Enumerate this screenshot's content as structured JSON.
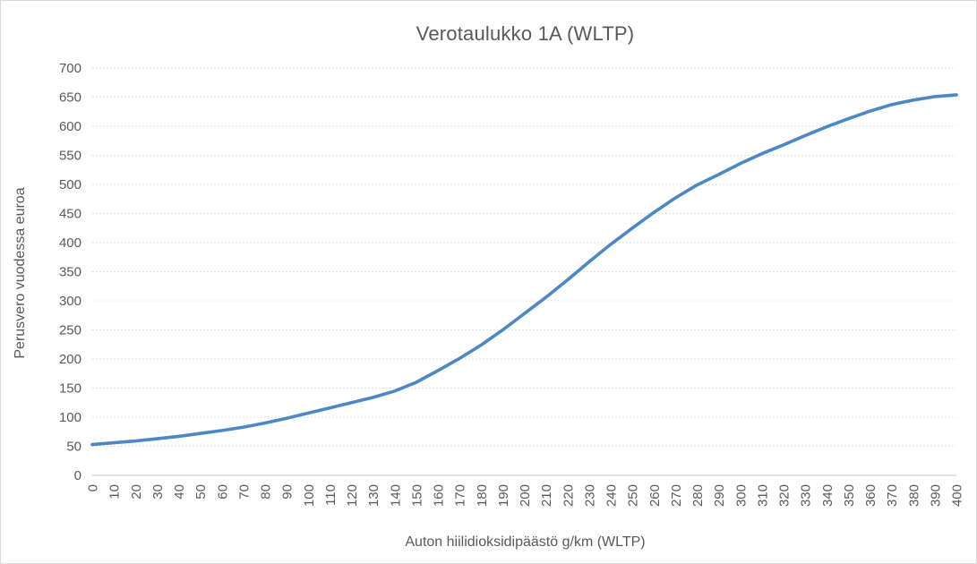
{
  "chart": {
    "title": "Verotaulukko 1A (WLTP)",
    "x_axis_title": "Auton hiilidioksidipäästö g/km (WLTP)",
    "y_axis_title": "Perusvero vuodessa euroa"
  },
  "chart_data": {
    "type": "line",
    "title": "Verotaulukko 1A (WLTP)",
    "xlabel": "Auton hiilidioksidipäästö g/km (WLTP)",
    "ylabel": "Perusvero vuodessa euroa",
    "x": [
      0,
      10,
      20,
      30,
      40,
      50,
      60,
      70,
      80,
      90,
      100,
      110,
      120,
      130,
      140,
      150,
      160,
      170,
      180,
      190,
      200,
      210,
      220,
      230,
      240,
      250,
      260,
      270,
      280,
      290,
      300,
      310,
      320,
      330,
      340,
      350,
      360,
      370,
      380,
      390,
      400
    ],
    "values": [
      53,
      56,
      59,
      63,
      67,
      72,
      77,
      83,
      90,
      98,
      107,
      116,
      125,
      134,
      145,
      160,
      180,
      201,
      224,
      250,
      278,
      306,
      336,
      367,
      397,
      425,
      452,
      477,
      499,
      517,
      536,
      553,
      568,
      584,
      599,
      613,
      626,
      637,
      645,
      651,
      654
    ],
    "x_ticks": [
      0,
      10,
      20,
      30,
      40,
      50,
      60,
      70,
      80,
      90,
      100,
      110,
      120,
      130,
      140,
      150,
      160,
      170,
      180,
      190,
      200,
      210,
      220,
      230,
      240,
      250,
      260,
      270,
      280,
      290,
      300,
      310,
      320,
      330,
      340,
      350,
      360,
      370,
      380,
      390,
      400
    ],
    "y_ticks": [
      0,
      50,
      100,
      150,
      200,
      250,
      300,
      350,
      400,
      450,
      500,
      550,
      600,
      650,
      700
    ],
    "xlim": [
      0,
      400
    ],
    "ylim": [
      0,
      700
    ],
    "grid": "horizontal-dotted",
    "legend": "none",
    "line_color": "#4e87c5",
    "gridline_color": "#d9d9d9",
    "axis_line_color": "#c6c6c6",
    "axis_text_color": "#595959"
  }
}
